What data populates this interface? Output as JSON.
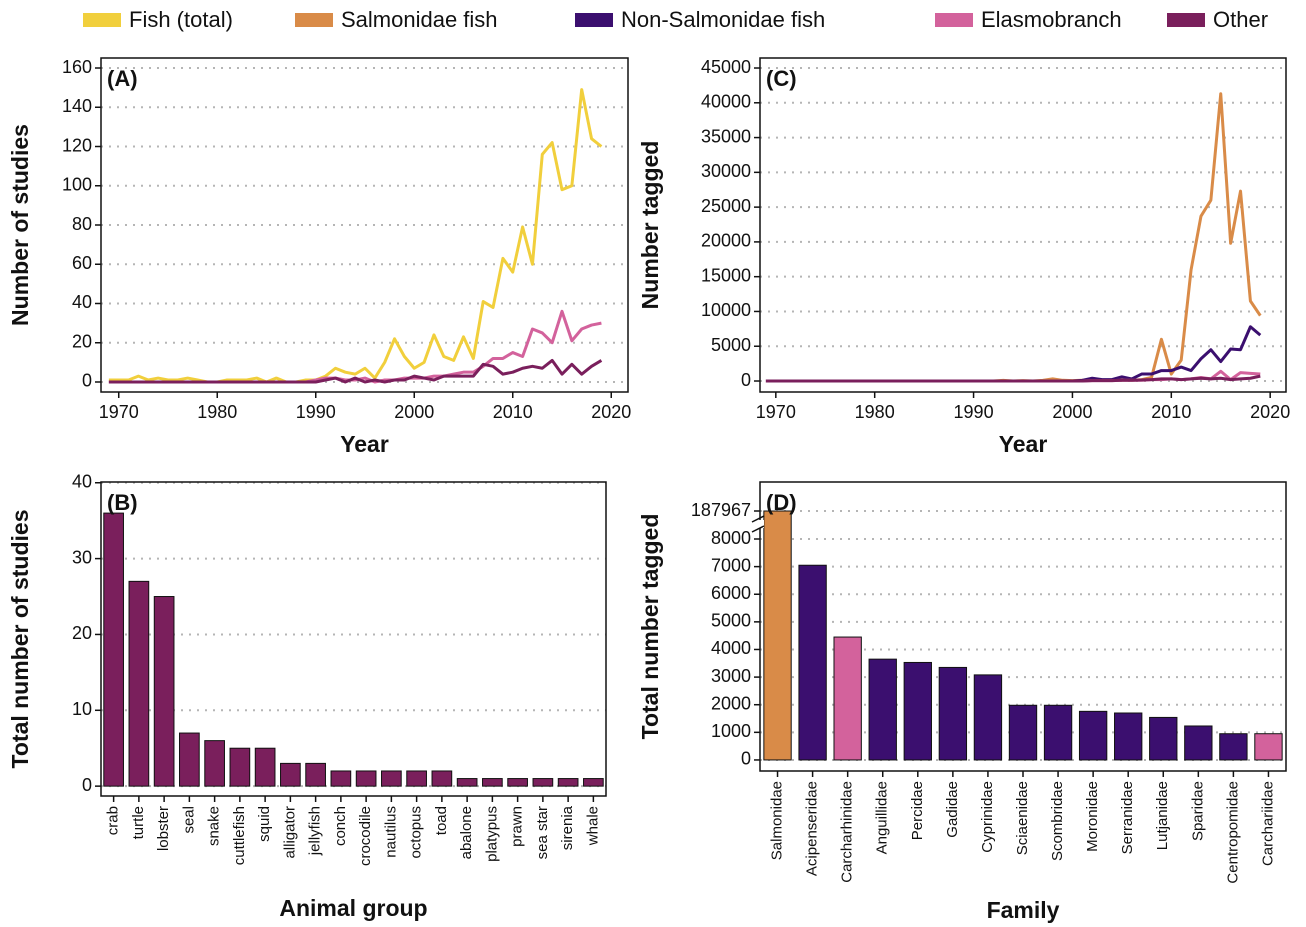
{
  "legend": [
    {
      "name": "Fish (total)",
      "color": "#f1cf3c"
    },
    {
      "name": "Salmonidae fish",
      "color": "#d98b48"
    },
    {
      "name": "Non-Salmonidae fish",
      "color": "#3b0f6f"
    },
    {
      "name": "Elasmobranch",
      "color": "#d3629c"
    },
    {
      "name": "Other",
      "color": "#7a1f5c"
    }
  ],
  "chart_data": [
    {
      "type": "line",
      "label": "(A)",
      "x_label": "Year",
      "y_label": "Number of studies",
      "x": [
        1969,
        1970,
        1971,
        1972,
        1973,
        1974,
        1975,
        1976,
        1977,
        1978,
        1979,
        1980,
        1981,
        1982,
        1983,
        1984,
        1985,
        1986,
        1987,
        1988,
        1989,
        1990,
        1991,
        1992,
        1993,
        1994,
        1995,
        1996,
        1997,
        1998,
        1999,
        2000,
        2001,
        2002,
        2003,
        2004,
        2005,
        2006,
        2007,
        2008,
        2009,
        2010,
        2011,
        2012,
        2013,
        2014,
        2015,
        2016,
        2017,
        2018,
        2019
      ],
      "series": [
        {
          "color": "#f1cf3c",
          "values": [
            1,
            1,
            1,
            3,
            1,
            2,
            1,
            1,
            2,
            1,
            0,
            0,
            1,
            1,
            1,
            2,
            0,
            2,
            0,
            0,
            1,
            1,
            3,
            7,
            5,
            4,
            7,
            2,
            10,
            22,
            13,
            7,
            10,
            24,
            13,
            11,
            23,
            12,
            41,
            38,
            63,
            56,
            79,
            60,
            116,
            122,
            98,
            100,
            149,
            124,
            120
          ]
        },
        {
          "color": "#d3629c",
          "values": [
            0,
            0,
            0,
            0,
            0,
            0,
            0,
            0,
            0,
            0,
            0,
            0,
            0,
            0,
            0,
            0,
            0,
            0,
            0,
            0,
            0,
            1,
            2,
            2,
            1,
            1,
            2,
            0,
            1,
            1,
            2,
            2,
            2,
            3,
            3,
            4,
            5,
            5,
            8,
            12,
            12,
            15,
            13,
            27,
            25,
            20,
            36,
            21,
            27,
            29,
            30
          ]
        },
        {
          "color": "#7a1f5c",
          "values": [
            0,
            0,
            0,
            0,
            0,
            0,
            0,
            0,
            0,
            0,
            0,
            0,
            0,
            0,
            0,
            0,
            0,
            0,
            0,
            0,
            0,
            0,
            1,
            2,
            0,
            2,
            0,
            1,
            0,
            1,
            1,
            3,
            2,
            1,
            3,
            3,
            3,
            3,
            9,
            8,
            4,
            5,
            7,
            8,
            7,
            11,
            4,
            9,
            4,
            8,
            11
          ]
        }
      ],
      "xlim": [
        1968.2,
        2021.7
      ],
      "xticks": [
        1970,
        1980,
        1990,
        2000,
        2010,
        2020
      ],
      "ylim": [
        -5.1,
        165.1
      ],
      "yticks": [
        0,
        20,
        40,
        60,
        80,
        100,
        120,
        140,
        160
      ],
      "grid": true
    },
    {
      "type": "bar",
      "label": "(B)",
      "x_label": "Animal group",
      "y_label": "Total number of studies",
      "categories": [
        "crab",
        "turtle",
        "lobster",
        "seal",
        "snake",
        "cuttlefish",
        "squid",
        "alligator",
        "jellyfish",
        "conch",
        "crocodile",
        "nautilus",
        "octopus",
        "toad",
        "abalone",
        "platypus",
        "prawn",
        "sea star",
        "sirenia",
        "whale"
      ],
      "values": [
        36,
        27,
        25,
        7,
        6,
        5,
        5,
        3,
        3,
        2,
        2,
        2,
        2,
        2,
        1,
        1,
        1,
        1,
        1,
        1
      ],
      "color": "#7a1f5c",
      "ylim": [
        -1.3,
        40.1
      ],
      "yticks": [
        0,
        10,
        20,
        30,
        40
      ],
      "grid": true
    },
    {
      "type": "line",
      "label": "(C)",
      "x_label": "Year",
      "y_label": "Number tagged",
      "x": [
        1969,
        1970,
        1971,
        1972,
        1973,
        1974,
        1975,
        1976,
        1977,
        1978,
        1979,
        1980,
        1981,
        1982,
        1983,
        1984,
        1985,
        1986,
        1987,
        1988,
        1989,
        1990,
        1991,
        1992,
        1993,
        1994,
        1995,
        1996,
        1997,
        1998,
        1999,
        2000,
        2001,
        2002,
        2003,
        2004,
        2005,
        2006,
        2007,
        2008,
        2009,
        2010,
        2011,
        2012,
        2013,
        2014,
        2015,
        2016,
        2017,
        2018,
        2019
      ],
      "series": [
        {
          "color": "#d98b48",
          "values": [
            0,
            0,
            0,
            0,
            0,
            0,
            0,
            0,
            0,
            0,
            0,
            0,
            0,
            0,
            0,
            0,
            0,
            0,
            0,
            0,
            0,
            0,
            0,
            0,
            100,
            0,
            50,
            0,
            100,
            300,
            100,
            50,
            100,
            150,
            100,
            100,
            150,
            100,
            200,
            500,
            6000,
            1000,
            3000,
            16000,
            23700,
            26000,
            41300,
            19800,
            27300,
            11500,
            9400
          ]
        },
        {
          "color": "#3b0f6f",
          "values": [
            0,
            0,
            0,
            0,
            0,
            0,
            0,
            0,
            0,
            0,
            0,
            0,
            0,
            0,
            0,
            0,
            0,
            0,
            0,
            0,
            0,
            0,
            0,
            0,
            0,
            0,
            0,
            0,
            0,
            0,
            0,
            0,
            100,
            400,
            200,
            200,
            600,
            300,
            1000,
            1000,
            1500,
            1500,
            2000,
            1500,
            3200,
            4500,
            2800,
            4600,
            4500,
            7800,
            6600
          ]
        },
        {
          "color": "#d3629c",
          "values": [
            0,
            0,
            0,
            0,
            0,
            0,
            0,
            0,
            0,
            0,
            0,
            0,
            0,
            0,
            0,
            0,
            0,
            0,
            0,
            0,
            0,
            0,
            0,
            0,
            0,
            0,
            0,
            0,
            0,
            0,
            0,
            0,
            0,
            50,
            50,
            50,
            100,
            100,
            100,
            200,
            200,
            300,
            200,
            300,
            500,
            300,
            1400,
            200,
            1200,
            1100,
            1000
          ]
        },
        {
          "color": "#7a1f5c",
          "values": [
            0,
            0,
            0,
            0,
            0,
            0,
            0,
            0,
            0,
            0,
            0,
            0,
            0,
            0,
            0,
            0,
            0,
            0,
            0,
            0,
            0,
            0,
            0,
            0,
            0,
            0,
            0,
            0,
            0,
            0,
            0,
            0,
            0,
            50,
            50,
            50,
            100,
            100,
            150,
            200,
            300,
            300,
            200,
            300,
            400,
            300,
            400,
            200,
            300,
            400,
            700
          ]
        }
      ],
      "xlim": [
        1968.4,
        2021.6
      ],
      "xticks": [
        1970,
        1980,
        1990,
        2000,
        2010,
        2020
      ],
      "ylim": [
        -1580,
        46440
      ],
      "yticks": [
        0,
        5000,
        10000,
        15000,
        20000,
        25000,
        30000,
        35000,
        40000,
        45000
      ],
      "grid": true
    },
    {
      "type": "bar",
      "label": "(D)",
      "x_label": "Family",
      "y_label": "Total number tagged",
      "categories": [
        "Salmonidae",
        "Acipenseridae",
        "Carcharhinidae",
        "Anguillidae",
        "Percidae",
        "Gadidae",
        "Cyprinidae",
        "Sciaenidae",
        "Scombridae",
        "Moronidae",
        "Serranidae",
        "Lutjanidae",
        "Sparidae",
        "Centropomidae",
        "Carchariidae"
      ],
      "values": [
        187967,
        7050,
        4450,
        3650,
        3530,
        3350,
        3080,
        1980,
        1980,
        1760,
        1700,
        1540,
        1230,
        950,
        950
      ],
      "colors": [
        "#d98b48",
        "#3b0f6f",
        "#d3629c",
        "#3b0f6f",
        "#3b0f6f",
        "#3b0f6f",
        "#3b0f6f",
        "#3b0f6f",
        "#3b0f6f",
        "#3b0f6f",
        "#3b0f6f",
        "#3b0f6f",
        "#3b0f6f",
        "#3b0f6f",
        "#d3629c"
      ],
      "ylim": [
        -400,
        187967
      ],
      "yticks": [
        0,
        1000,
        2000,
        3000,
        4000,
        5000,
        6000,
        7000,
        8000,
        187967
      ],
      "grid": true
    }
  ]
}
